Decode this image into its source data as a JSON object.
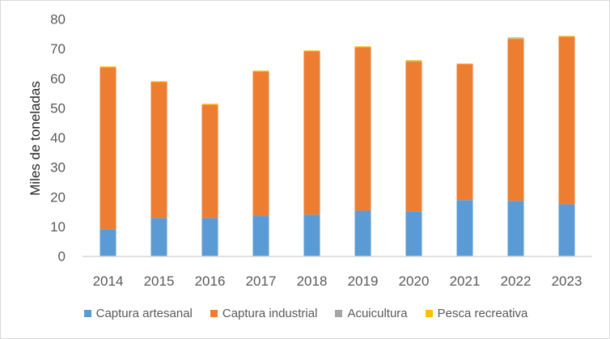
{
  "chart_data": {
    "type": "bar",
    "stacked": true,
    "title": "",
    "xlabel": "",
    "ylabel": "Miles de toneladas",
    "ylim": [
      0,
      80
    ],
    "yticks": [
      0,
      10,
      20,
      30,
      40,
      50,
      60,
      70,
      80
    ],
    "grid": false,
    "legend_position": "bottom",
    "categories": [
      "2014",
      "2015",
      "2016",
      "2017",
      "2018",
      "2019",
      "2020",
      "2021",
      "2022",
      "2023"
    ],
    "series": [
      {
        "name": "Captura artesanal",
        "color": "#5B9BD5",
        "values": [
          9.1,
          12.9,
          12.9,
          13.5,
          14.0,
          15.3,
          15.1,
          18.9,
          18.6,
          17.5
        ]
      },
      {
        "name": "Captura industrial",
        "color": "#ED7D31",
        "values": [
          54.6,
          45.8,
          38.2,
          48.8,
          55.1,
          55.2,
          50.5,
          45.9,
          54.6,
          56.5
        ]
      },
      {
        "name": "Acuicultura",
        "color": "#A5A5A5",
        "values": [
          0,
          0,
          0,
          0,
          0,
          0,
          0.2,
          0,
          0.3,
          0
        ]
      },
      {
        "name": "Pesca recreativa",
        "color": "#FFC000",
        "values": [
          0.3,
          0.3,
          0.3,
          0.3,
          0.3,
          0.3,
          0.3,
          0.2,
          0.3,
          0.3
        ]
      }
    ]
  }
}
